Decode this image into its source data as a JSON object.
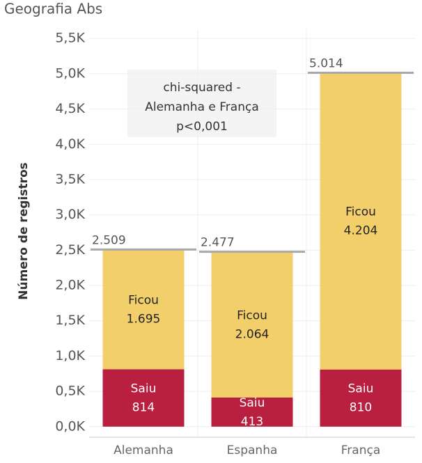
{
  "chart_data": {
    "type": "stacked-bar",
    "title": "Geografia Abs",
    "y_label": "Número de registros",
    "categories": [
      "Alemanha",
      "Espanha",
      "França"
    ],
    "series": [
      {
        "name": "Saiu",
        "color": "#b91f3f",
        "values": [
          814,
          413,
          810
        ],
        "value_labels": [
          "814",
          "413",
          "810"
        ]
      },
      {
        "name": "Ficou",
        "color": "#f2cf6b",
        "values": [
          1695,
          2064,
          4204
        ],
        "value_labels": [
          "1.695",
          "2.064",
          "4.204"
        ]
      }
    ],
    "totals": {
      "color": "#a8a8a8",
      "values": [
        2509,
        2477,
        5014
      ],
      "value_labels": [
        "2.509",
        "2.477",
        "5.014"
      ]
    },
    "annotation": [
      "chi-squared -",
      "Alemanha e França",
      "p<0,001"
    ],
    "ylim": [
      -150,
      5630
    ],
    "yticks": [
      {
        "value": 0,
        "label": "0,0K"
      },
      {
        "value": 500,
        "label": "0,5K"
      },
      {
        "value": 1000,
        "label": "1,0K"
      },
      {
        "value": 1500,
        "label": "1,5K"
      },
      {
        "value": 2000,
        "label": "2,0K"
      },
      {
        "value": 2500,
        "label": "2,5K"
      },
      {
        "value": 3000,
        "label": "3,0K"
      },
      {
        "value": 3500,
        "label": "3,5K"
      },
      {
        "value": 4000,
        "label": "4,0K"
      },
      {
        "value": 4500,
        "label": "4,5K"
      },
      {
        "value": 5000,
        "label": "5,0K"
      },
      {
        "value": 5500,
        "label": "5,5K"
      }
    ],
    "grid": true
  }
}
